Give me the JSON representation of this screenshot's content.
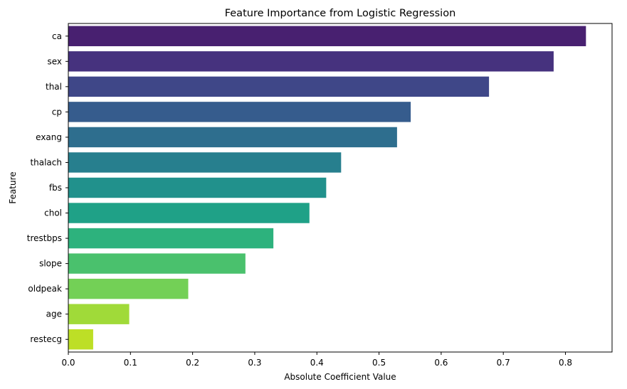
{
  "chart_data": {
    "type": "bar",
    "orientation": "horizontal",
    "title": "Feature Importance from Logistic Regression",
    "xlabel": "Absolute Coefficient Value",
    "ylabel": "Feature",
    "categories": [
      "ca",
      "sex",
      "thal",
      "cp",
      "exang",
      "thalach",
      "fbs",
      "chol",
      "trestbps",
      "slope",
      "oldpeak",
      "age",
      "restecg"
    ],
    "values": [
      0.833,
      0.781,
      0.677,
      0.551,
      0.529,
      0.439,
      0.415,
      0.388,
      0.33,
      0.285,
      0.193,
      0.098,
      0.04
    ],
    "colors": [
      "#482070",
      "#46327e",
      "#3f4788",
      "#365c8d",
      "#2e6e8e",
      "#277f8e",
      "#21918c",
      "#1fa187",
      "#2db27d",
      "#4ac16d",
      "#73d056",
      "#a0da39",
      "#bddf26"
    ],
    "xlim": [
      0,
      0.875
    ],
    "xticks": [
      "0.0",
      "0.1",
      "0.2",
      "0.3",
      "0.4",
      "0.5",
      "0.6",
      "0.7",
      "0.8"
    ],
    "grid": false,
    "legend": "none"
  }
}
